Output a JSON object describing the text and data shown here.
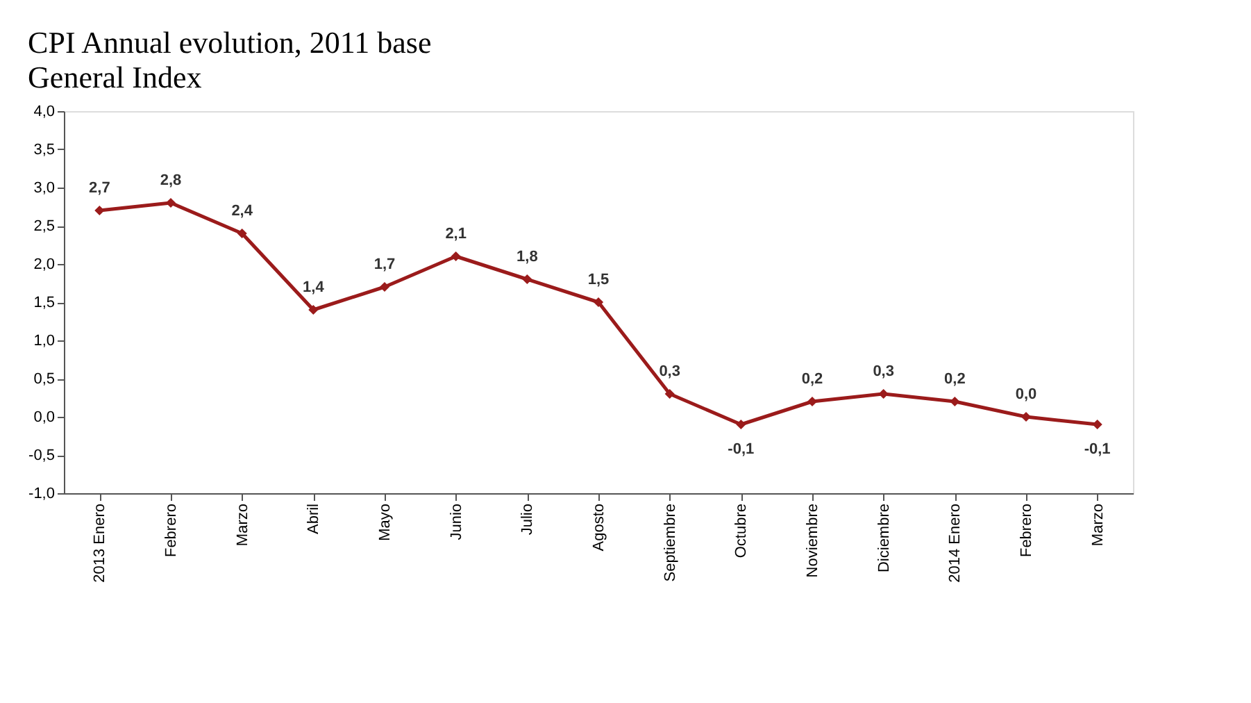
{
  "chart_data": {
    "type": "line",
    "title": "CPI Annual evolution, 2011 base",
    "subtitle": "General Index",
    "categories": [
      "2013 Enero",
      "Febrero",
      "Marzo",
      "Abril",
      "Mayo",
      "Junio",
      "Julio",
      "Agosto",
      "Septiembre",
      "Octubre",
      "Noviembre",
      "Diciembre",
      "2014 Enero",
      "Febrero",
      "Marzo"
    ],
    "series": [
      {
        "color": "#9b1b1b",
        "values": [
          2.7,
          2.8,
          2.4,
          1.4,
          1.7,
          2.1,
          1.8,
          1.5,
          0.3,
          -0.1,
          0.2,
          0.3,
          0.2,
          0.0,
          -0.1
        ],
        "value_labels": [
          "2,7",
          "2,8",
          "2,4",
          "1,4",
          "1,7",
          "2,1",
          "1,8",
          "1,5",
          "0,3",
          "-0,1",
          "0,2",
          "0,3",
          "0,2",
          "0,0",
          "-0,1"
        ]
      }
    ],
    "ylim": [
      -1.0,
      4.0
    ],
    "yticks": [
      {
        "value": -1.0,
        "label": "-1,0"
      },
      {
        "value": -0.5,
        "label": "-0,5"
      },
      {
        "value": 0.0,
        "label": "0,0"
      },
      {
        "value": 0.5,
        "label": "0,5"
      },
      {
        "value": 1.0,
        "label": "1,0"
      },
      {
        "value": 1.5,
        "label": "1,5"
      },
      {
        "value": 2.0,
        "label": "2,0"
      },
      {
        "value": 2.5,
        "label": "2,5"
      },
      {
        "value": 3.0,
        "label": "3,0"
      },
      {
        "value": 3.5,
        "label": "3,5"
      },
      {
        "value": 4.0,
        "label": "4,0"
      }
    ],
    "marker": "diamond",
    "line_style": "solid",
    "grid": false
  }
}
